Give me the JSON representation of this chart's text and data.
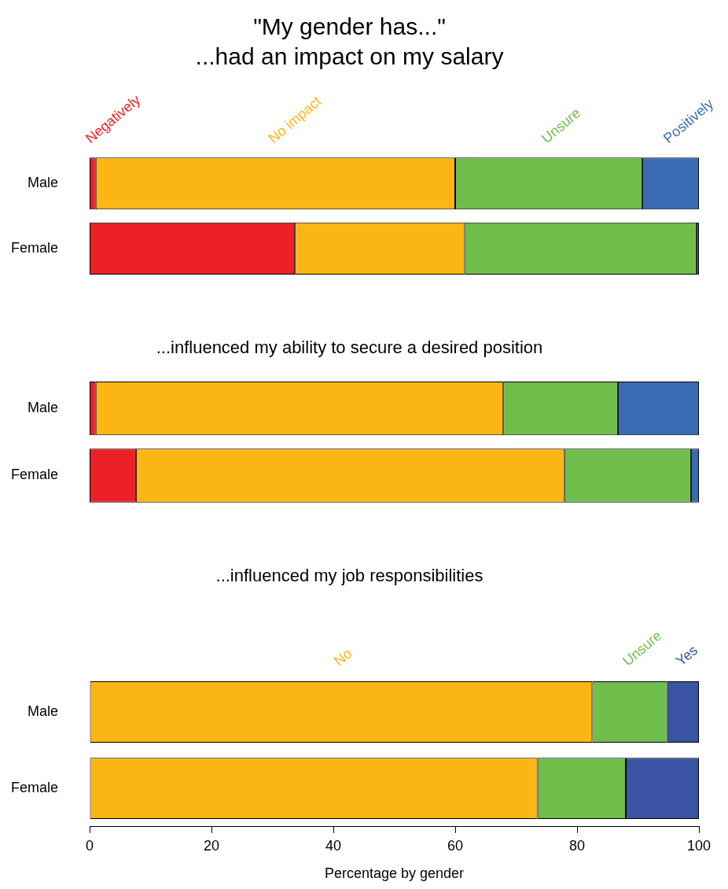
{
  "chart_data": [
    {
      "type": "bar",
      "title": "\"My gender has...\"",
      "subtitle": "...had an impact on my salary",
      "orientation": "horizontal",
      "stacked": true,
      "categories": [
        "Male",
        "Female"
      ],
      "xlim": [
        0,
        100
      ],
      "tick_labels": "y",
      "series": [
        {
          "name": "Negatively",
          "color": "#ee2027",
          "values": [
            1.0,
            33.7
          ]
        },
        {
          "name": "No impact",
          "color": "#fbb615",
          "values": [
            59.0,
            27.8
          ]
        },
        {
          "name": "Unsure",
          "color": "#6fbe4b",
          "values": [
            30.7,
            38.1
          ]
        },
        {
          "name": "Positively",
          "color": "#3a6cb5",
          "values": [
            9.3,
            0.4
          ]
        }
      ]
    },
    {
      "type": "bar",
      "title": "...influenced my ability to secure a desired position",
      "orientation": "horizontal",
      "stacked": true,
      "categories": [
        "Male",
        "Female"
      ],
      "xlim": [
        0,
        100
      ],
      "tick_labels": "y",
      "series": [
        {
          "color": "#ee2027",
          "values": [
            1.0,
            7.6
          ]
        },
        {
          "color": "#fbb615",
          "values": [
            66.9,
            70.3
          ]
        },
        {
          "color": "#6fbe4b",
          "values": [
            18.8,
            20.8
          ]
        },
        {
          "color": "#3a6cb5",
          "values": [
            13.3,
            1.3
          ]
        }
      ]
    },
    {
      "type": "bar",
      "title": "...influenced my job responsibilities",
      "xlabel": "Percentage by gender",
      "orientation": "horizontal",
      "stacked": true,
      "categories": [
        "Male",
        "Female"
      ],
      "xlim": [
        0,
        100
      ],
      "xticks": [
        0,
        20,
        40,
        60,
        80,
        100
      ],
      "series": [
        {
          "name": "No",
          "color": "#fbb615",
          "values": [
            82.5,
            73.5
          ]
        },
        {
          "name": "Unsure",
          "color": "#6fbe4b",
          "values": [
            12.3,
            14.5
          ]
        },
        {
          "name": "Yes",
          "color": "#3a53a4",
          "values": [
            5.2,
            12.0
          ]
        }
      ]
    }
  ]
}
